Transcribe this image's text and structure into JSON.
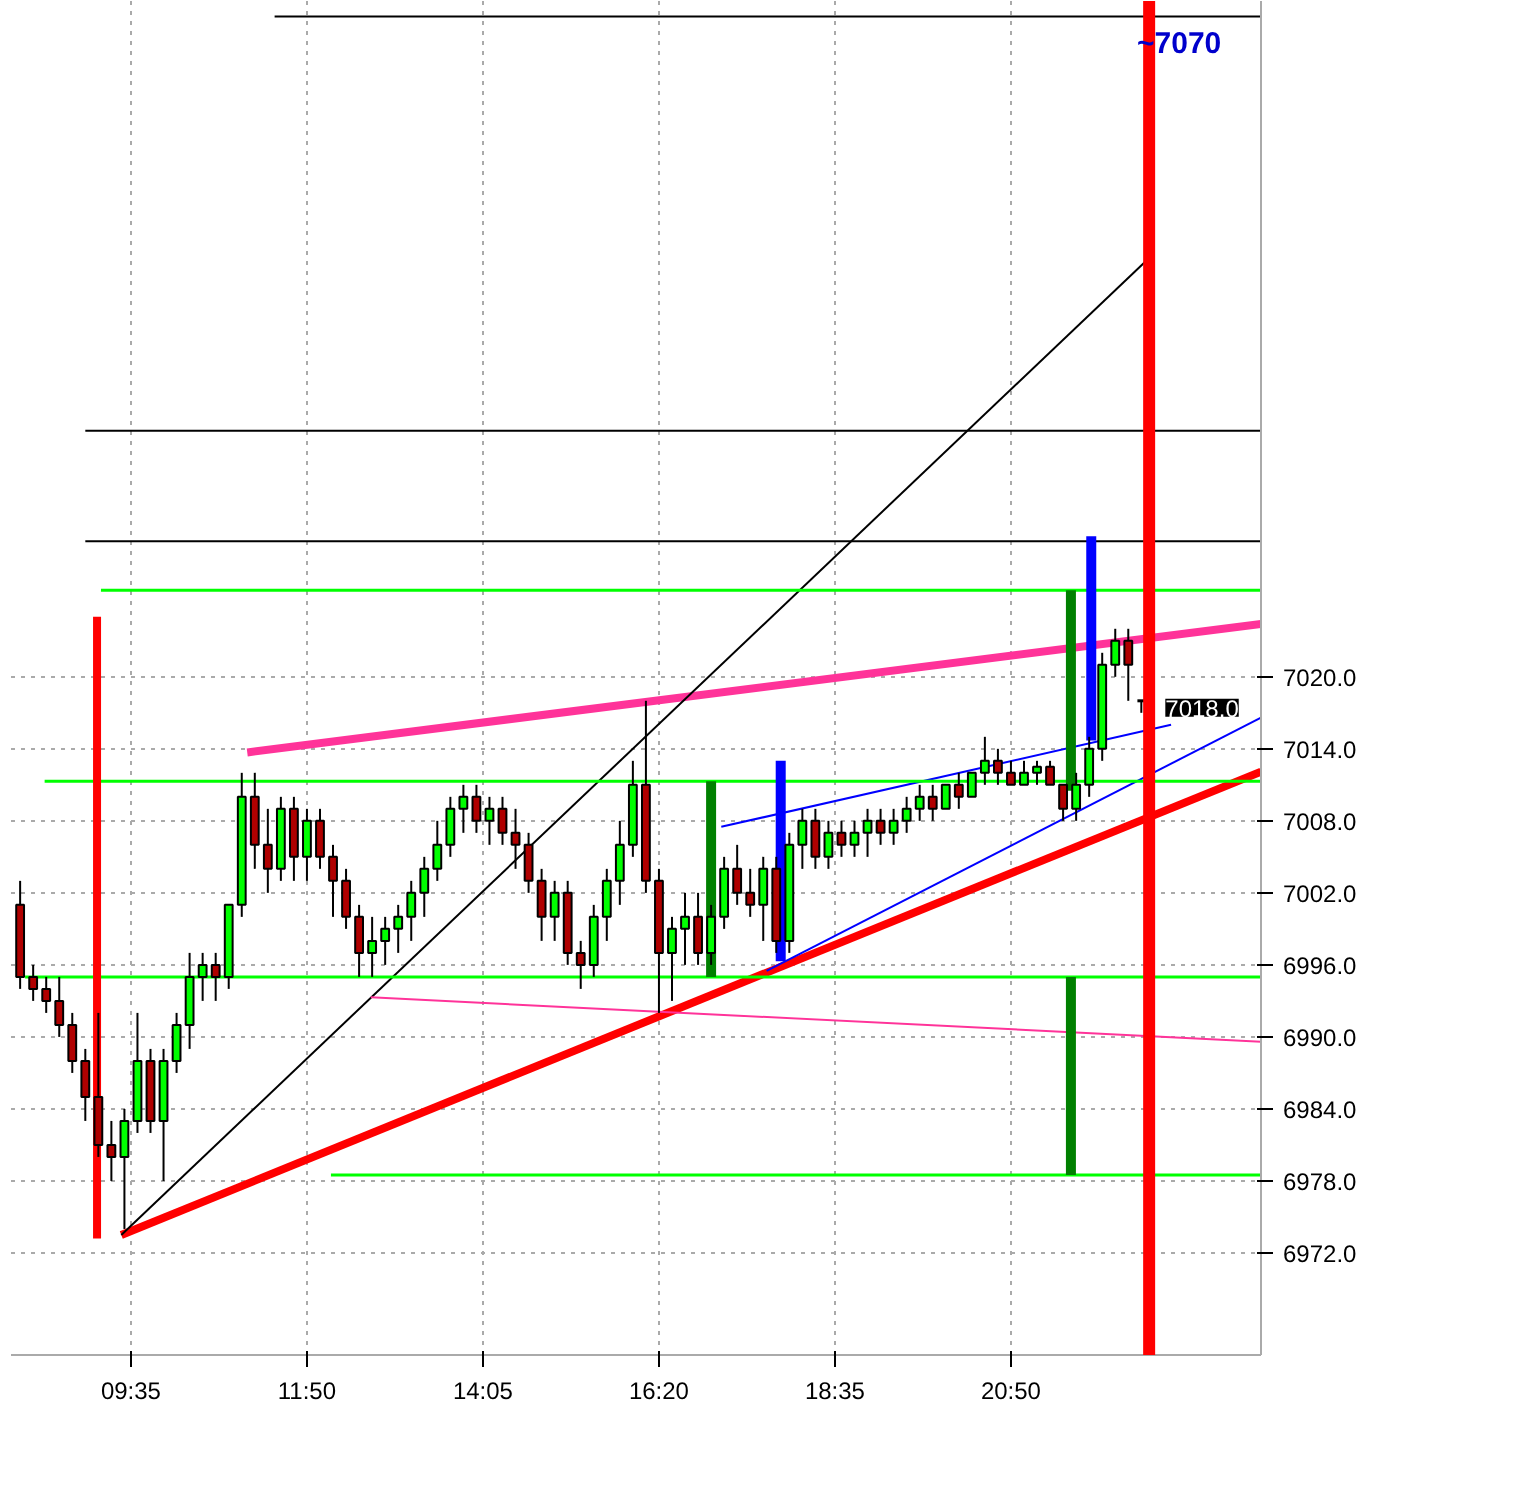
{
  "chart_data": {
    "type": "candlestick",
    "x": [
      8.1667,
      8.3333,
      8.5,
      8.6667,
      8.8333,
      9,
      9.1667,
      9.3333,
      9.5,
      9.6667,
      9.8333,
      10,
      10.1667,
      10.3333,
      10.5,
      10.6667,
      10.8333,
      11,
      11.1667,
      11.3333,
      11.5,
      11.6667,
      11.8333,
      12,
      12.1667,
      12.3333,
      12.5,
      12.6667,
      12.8333,
      13,
      13.1667,
      13.3333,
      13.5,
      13.6667,
      13.8333,
      14,
      14.1667,
      14.3333,
      14.5,
      14.6667,
      14.8333,
      15,
      15.1667,
      15.3333,
      15.5,
      15.6667,
      15.8333,
      16,
      16.1667,
      16.3333,
      16.5,
      16.6667,
      16.8333,
      17,
      17.1667,
      17.3333,
      17.5,
      17.6667,
      17.8333,
      18,
      18.1667,
      18.3333,
      18.5,
      18.6667,
      18.8333,
      19,
      19.1667,
      19.3333,
      19.5,
      19.6667,
      19.8333,
      20,
      20.1667,
      20.3333,
      20.5,
      20.6667,
      20.8333,
      21,
      21.1667,
      21.3333,
      21.5,
      21.6667,
      21.8333,
      22,
      22.1667,
      22.3333,
      22.5
    ],
    "ohlc": [
      [
        7001,
        7003,
        6994,
        6995
      ],
      [
        6995,
        6996,
        6993,
        6994
      ],
      [
        6994,
        6995,
        6992,
        6993
      ],
      [
        6993,
        6995,
        6990,
        6991
      ],
      [
        6991,
        6992,
        6987,
        6988
      ],
      [
        6988,
        6989,
        6983,
        6985
      ],
      [
        6985,
        6992,
        6980,
        6981
      ],
      [
        6981,
        6983,
        6978,
        6980
      ],
      [
        6980,
        6984,
        6974,
        6983
      ],
      [
        6983,
        6992,
        6982,
        6988
      ],
      [
        6988,
        6989,
        6982,
        6983
      ],
      [
        6983,
        6989,
        6978,
        6988
      ],
      [
        6988,
        6992,
        6987,
        6991
      ],
      [
        6991,
        6997,
        6989,
        6995
      ],
      [
        6995,
        6997,
        6993,
        6996
      ],
      [
        6996,
        6997,
        6993,
        6995
      ],
      [
        6995,
        7001,
        6994,
        7001
      ],
      [
        7001,
        7012,
        7000,
        7010
      ],
      [
        7010,
        7012,
        7004,
        7006
      ],
      [
        7006,
        7009,
        7002,
        7004
      ],
      [
        7004,
        7010,
        7003,
        7009
      ],
      [
        7009,
        7010,
        7003,
        7005
      ],
      [
        7005,
        7009,
        7003,
        7008
      ],
      [
        7008,
        7009,
        7004,
        7005
      ],
      [
        7005,
        7006,
        7000,
        7003
      ],
      [
        7003,
        7004,
        6999,
        7000
      ],
      [
        7000,
        7001,
        6995,
        6997
      ],
      [
        6997,
        7000,
        6995,
        6998
      ],
      [
        6998,
        7000,
        6996,
        6999
      ],
      [
        6999,
        7001,
        6997,
        7000
      ],
      [
        7000,
        7003,
        6998,
        7002
      ],
      [
        7002,
        7005,
        7000,
        7004
      ],
      [
        7004,
        7008,
        7003,
        7006
      ],
      [
        7006,
        7010,
        7005,
        7009
      ],
      [
        7009,
        7011,
        7007,
        7010
      ],
      [
        7010,
        7011,
        7007,
        7008
      ],
      [
        7008,
        7010,
        7006,
        7009
      ],
      [
        7009,
        7010,
        7006,
        7007
      ],
      [
        7007,
        7009,
        7004,
        7006
      ],
      [
        7006,
        7007,
        7002,
        7003
      ],
      [
        7003,
        7004,
        6998,
        7000
      ],
      [
        7000,
        7003,
        6998,
        7002
      ],
      [
        7002,
        7003,
        6996,
        6997
      ],
      [
        6997,
        6998,
        6994,
        6996
      ],
      [
        6996,
        7001,
        6995,
        7000
      ],
      [
        7000,
        7004,
        6998,
        7003
      ],
      [
        7003,
        7008,
        7001,
        7006
      ],
      [
        7006,
        7013,
        7005,
        7011
      ],
      [
        7011,
        7018,
        7002,
        7003
      ],
      [
        7003,
        7004,
        6992,
        6997
      ],
      [
        6997,
        7000,
        6993,
        6999
      ],
      [
        6999,
        7002,
        6996,
        7000
      ],
      [
        7000,
        7002,
        6996,
        6997
      ],
      [
        6997,
        7001,
        6996,
        7000
      ],
      [
        7000,
        7005,
        6999,
        7004
      ],
      [
        7004,
        7006,
        7001,
        7002
      ],
      [
        7002,
        7004,
        7000,
        7001
      ],
      [
        7001,
        7005,
        6998,
        7004
      ],
      [
        7004,
        7005,
        6997,
        6998
      ],
      [
        6998,
        7007,
        6997,
        7006
      ],
      [
        7006,
        7009,
        7004,
        7008
      ],
      [
        7008,
        7009,
        7004,
        7005
      ],
      [
        7005,
        7008,
        7004,
        7007
      ],
      [
        7007,
        7008,
        7005,
        7006
      ],
      [
        7006,
        7008,
        7005,
        7007
      ],
      [
        7007,
        7009,
        7005,
        7008
      ],
      [
        7008,
        7009,
        7006,
        7007
      ],
      [
        7007,
        7009,
        7006,
        7008
      ],
      [
        7008,
        7010,
        7007,
        7009
      ],
      [
        7009,
        7011,
        7008,
        7010
      ],
      [
        7010,
        7011,
        7008,
        7009
      ],
      [
        7009,
        7011,
        7009,
        7011
      ],
      [
        7011,
        7012,
        7009,
        7010
      ],
      [
        7010,
        7012,
        7010,
        7012
      ],
      [
        7012,
        7015,
        7011,
        7013
      ],
      [
        7013,
        7014,
        7011,
        7012
      ],
      [
        7012,
        7013,
        7011,
        7011
      ],
      [
        7011,
        7013,
        7011,
        7012
      ],
      [
        7012,
        7013,
        7011,
        7012.5
      ],
      [
        7012.5,
        7013,
        7011,
        7011
      ],
      [
        7011,
        7011,
        7008,
        7009
      ],
      [
        7009,
        7012,
        7008,
        7011
      ],
      [
        7011,
        7015,
        7010,
        7014
      ],
      [
        7014,
        7022,
        7013,
        7021
      ],
      [
        7021,
        7024,
        7020,
        7023
      ],
      [
        7023,
        7024,
        7018,
        7021
      ],
      [
        7018,
        7018,
        7017,
        7018
      ]
    ],
    "colors": [
      "#b00000",
      "#b00000",
      "#b00000",
      "#b00000",
      "#b00000",
      "#b00000",
      "#b00000",
      "#b00000",
      "#00ff00",
      "#00ff00",
      "#b00000",
      "#00ff00",
      "#00ff00",
      "#00ff00",
      "#00ff00",
      "#b00000",
      "#00ff00",
      "#00ff00",
      "#b00000",
      "#b00000",
      "#00ff00",
      "#b00000",
      "#00ff00",
      "#b00000",
      "#b00000",
      "#b00000",
      "#b00000",
      "#00ff00",
      "#00ff00",
      "#00ff00",
      "#00ff00",
      "#00ff00",
      "#00ff00",
      "#00ff00",
      "#00ff00",
      "#b00000",
      "#00ff00",
      "#b00000",
      "#b00000",
      "#b00000",
      "#b00000",
      "#00ff00",
      "#b00000",
      "#b00000",
      "#00ff00",
      "#00ff00",
      "#00ff00",
      "#00ff00",
      "#b00000",
      "#b00000",
      "#00ff00",
      "#00ff00",
      "#b00000",
      "#00ff00",
      "#00ff00",
      "#b00000",
      "#b00000",
      "#00ff00",
      "#b00000",
      "#00ff00",
      "#00ff00",
      "#b00000",
      "#00ff00",
      "#b00000",
      "#00ff00",
      "#00ff00",
      "#b00000",
      "#00ff00",
      "#00ff00",
      "#00ff00",
      "#b00000",
      "#00ff00",
      "#b00000",
      "#00ff00",
      "#00ff00",
      "#b00000",
      "#b00000",
      "#00ff00",
      "#00ff00",
      "#b00000",
      "#b00000",
      "#00ff00",
      "#00ff00",
      "#00ff00",
      "#00ff00",
      "#b00000",
      "#000000"
    ],
    "series": [
      {
        "type": "line",
        "color": "#ff3399",
        "x": [
          11.07,
          24.03
        ],
        "values": [
          7013.7,
          7024.4
        ]
      },
      {
        "type": "line",
        "color": "#ff0000",
        "x": [
          9.46,
          24.03
        ],
        "values": [
          6973.5,
          7012.1
        ]
      },
      {
        "type": "line",
        "color": "#000000",
        "x": [
          9.46,
          22.57
        ],
        "values": [
          6973.5,
          7054.7
        ]
      },
      {
        "type": "line",
        "color": "#0000ff",
        "x": [
          17.13,
          22.88
        ],
        "values": [
          7007.5,
          7016
        ]
      },
      {
        "type": "line",
        "color": "#0000ff",
        "x": [
          17.71,
          24.03
        ],
        "values": [
          6995.5,
          7016.6
        ]
      },
      {
        "type": "line",
        "color": "#ff3399",
        "x": [
          12.65,
          24.03
        ],
        "values": [
          6993.3,
          6989.6
        ]
      },
      {
        "type": "line",
        "color": "#00ff00",
        "x": [
          9.2,
          24.03
        ],
        "values": [
          7027.2,
          7027.2
        ]
      },
      {
        "type": "line",
        "color": "#00ff00",
        "x": [
          8.48,
          24.03
        ],
        "values": [
          7011.3,
          7011.3
        ]
      },
      {
        "type": "line",
        "color": "#00ff00",
        "x": [
          8.23,
          24.03
        ],
        "values": [
          6995,
          6995
        ]
      },
      {
        "type": "line",
        "color": "#00ff00",
        "x": [
          12.14,
          24.03
        ],
        "values": [
          6978.5,
          6978.5
        ]
      },
      {
        "type": "line",
        "color": "#000000",
        "x": [
          11.42,
          24.03
        ],
        "values": [
          7075,
          7075
        ]
      },
      {
        "type": "line",
        "color": "#000000",
        "x": [
          9.0,
          24.03
        ],
        "values": [
          7040.5,
          7040.5
        ]
      },
      {
        "type": "line",
        "color": "#000000",
        "x": [
          9.0,
          24.03
        ],
        "values": [
          7031.3,
          7031.3
        ]
      },
      {
        "type": "line",
        "color": "#ff0000",
        "x": [
          9.15,
          9.15
        ],
        "values": [
          6973.2,
          7025
        ]
      },
      {
        "type": "line",
        "color": "#008000",
        "x": [
          17.0,
          17.0
        ],
        "values": [
          6995,
          7011.3
        ]
      },
      {
        "type": "line",
        "color": "#008000",
        "x": [
          21.6,
          21.6
        ],
        "values": [
          7010.5,
          7027.2
        ]
      },
      {
        "type": "line",
        "color": "#008000",
        "x": [
          21.6,
          21.6
        ],
        "values": [
          6978.5,
          6995
        ]
      },
      {
        "type": "line",
        "color": "#0000ff",
        "x": [
          17.89,
          17.89
        ],
        "values": [
          6996.3,
          7013
        ]
      },
      {
        "type": "line",
        "color": "#0000ff",
        "x": [
          21.86,
          21.86
        ],
        "values": [
          7014.7,
          7031.7
        ]
      }
    ],
    "ref_lines": [
      {
        "axis": "x",
        "value": 22.6,
        "color": "#ff0000"
      }
    ],
    "annotations": [
      "~7070",
      {
        "text": "7018.0",
        "x": 22.5,
        "y": 7018
      }
    ],
    "xlim": [
      8.05,
      24.03
    ],
    "ylim": [
      6963.5,
      7076.3
    ],
    "xticks": [
      {
        "value": 9.5833,
        "label": "09:35"
      },
      {
        "value": 11.8333,
        "label": "11:50"
      },
      {
        "value": 14.0833,
        "label": "14:05"
      },
      {
        "value": 16.3333,
        "label": "16:20"
      },
      {
        "value": 18.5833,
        "label": "18:35"
      },
      {
        "value": 20.8333,
        "label": "20:50"
      }
    ],
    "yticks": [
      {
        "value": 6972,
        "label": "6972.0"
      },
      {
        "value": 6978,
        "label": "6978.0"
      },
      {
        "value": 6984,
        "label": "6984.0"
      },
      {
        "value": 6990,
        "label": "6990.0"
      },
      {
        "value": 6996,
        "label": "6996.0"
      },
      {
        "value": 7002,
        "label": "7002.0"
      },
      {
        "value": 7008,
        "label": "7008.0"
      },
      {
        "value": 7014,
        "label": "7014.0"
      },
      {
        "value": 7020,
        "label": "7020.0"
      }
    ],
    "grid": true
  }
}
